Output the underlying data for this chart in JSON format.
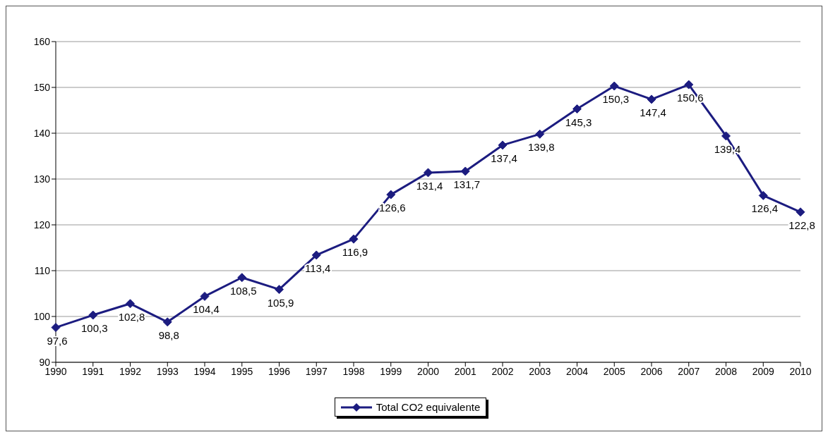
{
  "chart_data": {
    "type": "line",
    "categories": [
      "1990",
      "1991",
      "1992",
      "1993",
      "1994",
      "1995",
      "1996",
      "1997",
      "1998",
      "1999",
      "2000",
      "2001",
      "2002",
      "2003",
      "2004",
      "2005",
      "2006",
      "2007",
      "2008",
      "2009",
      "2010"
    ],
    "series": [
      {
        "name": "Total CO2 equivalente",
        "color": "#1c1c80",
        "values": [
          97.6,
          100.3,
          102.8,
          98.8,
          104.4,
          108.5,
          105.9,
          113.4,
          116.9,
          126.6,
          131.4,
          131.7,
          137.4,
          139.8,
          145.3,
          150.3,
          147.4,
          150.6,
          139.4,
          126.4,
          122.8
        ],
        "value_labels": [
          "97,6",
          "100,3",
          "102,8",
          "98,8",
          "104,4",
          "108,5",
          "105,9",
          "113,4",
          "116,9",
          "126,6",
          "131,4",
          "131,7",
          "137,4",
          "139,8",
          "145,3",
          "150,3",
          "147,4",
          "150,6",
          "139,4",
          "126,4",
          "122,8"
        ]
      }
    ],
    "ylim": [
      90,
      160
    ],
    "yticks": [
      90,
      100,
      110,
      120,
      130,
      140,
      150,
      160
    ],
    "grid": "y",
    "legend": "bottom",
    "marker": "diamond",
    "line_style": "solid"
  }
}
